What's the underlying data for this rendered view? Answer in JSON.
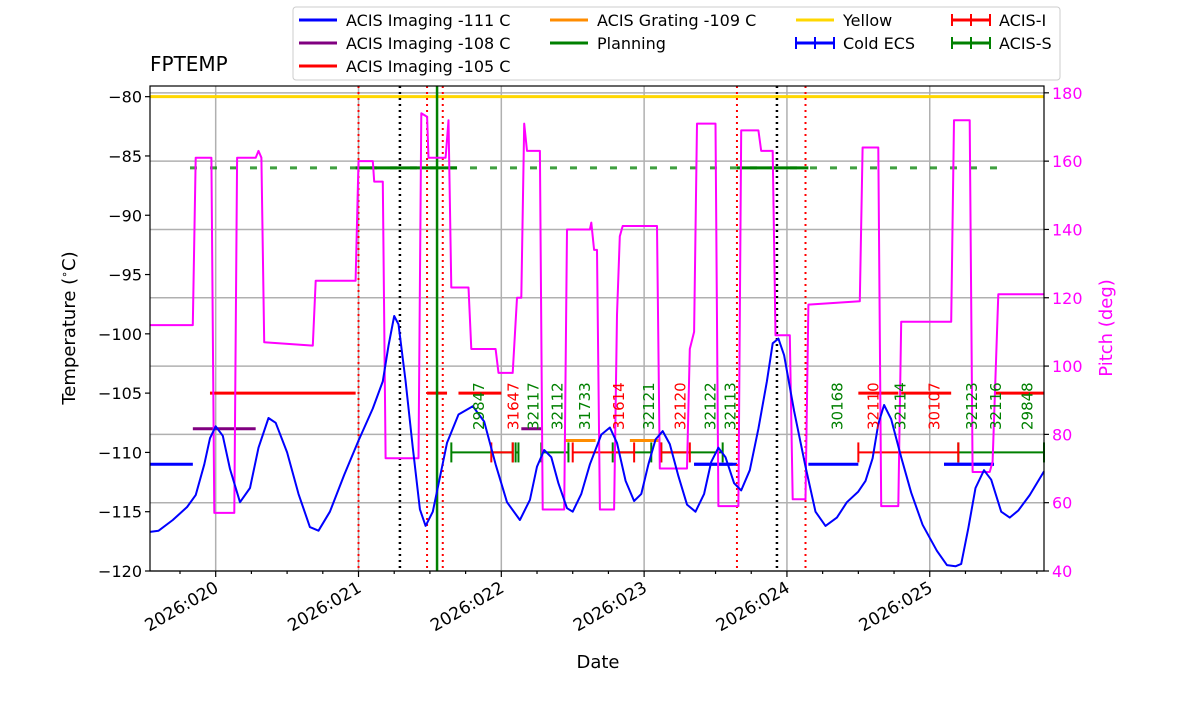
{
  "chart_data": {
    "type": "line",
    "title": "FPTEMP",
    "xlabel": "Date",
    "ylabel": "Temperature ($^\\circ$C)",
    "ylabel_display": "Temperature (",
    "ylabel_unit": "C)",
    "ylabel_degree": "∘",
    "y2label": "Pitch (deg)",
    "xlim": [
      19.54,
      25.8
    ],
    "ylim": [
      -120,
      -79.1
    ],
    "y2lim": [
      40,
      182
    ],
    "xticks": [
      {
        "v": 20,
        "label": "2026:020"
      },
      {
        "v": 21,
        "label": "2026:021"
      },
      {
        "v": 22,
        "label": "2026:022"
      },
      {
        "v": 23,
        "label": "2026:023"
      },
      {
        "v": 24,
        "label": "2026:024"
      },
      {
        "v": 25,
        "label": "2026:025"
      }
    ],
    "yticks": [
      {
        "v": -80,
        "label": "−80"
      },
      {
        "v": -85,
        "label": "−85"
      },
      {
        "v": -90,
        "label": "−90"
      },
      {
        "v": -95,
        "label": "−95"
      },
      {
        "v": -100,
        "label": "−100"
      },
      {
        "v": -105,
        "label": "−105"
      },
      {
        "v": -110,
        "label": "−110"
      },
      {
        "v": -115,
        "label": "−115"
      },
      {
        "v": -120,
        "label": "−120"
      }
    ],
    "y2ticks": [
      {
        "v": 40,
        "label": "40"
      },
      {
        "v": 60,
        "label": "60"
      },
      {
        "v": 80,
        "label": "80"
      },
      {
        "v": 100,
        "label": "100"
      },
      {
        "v": 120,
        "label": "120"
      },
      {
        "v": 140,
        "label": "140"
      },
      {
        "v": 160,
        "label": "160"
      },
      {
        "v": 180,
        "label": "180"
      }
    ],
    "colors": {
      "temp": "#0000ff",
      "pitch": "#ff00ff",
      "limit_111": "#0000ff",
      "limit_108": "#800080",
      "limit_105": "#ff0000",
      "limit_109": "#ff8c00",
      "planning": "#008000",
      "yellow": "#ffd700",
      "acis_i": "#ff0000",
      "acis_s": "#008000",
      "grid": "#b0b0b0"
    },
    "legend": {
      "placement": "top",
      "items": [
        {
          "label": "ACIS Imaging -111 C",
          "color": "#0000ff",
          "kind": "line"
        },
        {
          "label": "ACIS Imaging -108 C",
          "color": "#800080",
          "kind": "line"
        },
        {
          "label": "ACIS Imaging -105 C",
          "color": "#ff0000",
          "kind": "line"
        },
        {
          "label": "ACIS Grating -109 C",
          "color": "#ff8c00",
          "kind": "line"
        },
        {
          "label": "Planning",
          "color": "#008000",
          "kind": "line"
        },
        {
          "label": "Yellow",
          "color": "#ffd700",
          "kind": "line"
        },
        {
          "label": "Cold ECS",
          "color": "#0000ff",
          "kind": "errorbar"
        },
        {
          "label": "ACIS-I",
          "color": "#ff0000",
          "kind": "errorbar"
        },
        {
          "label": "ACIS-S",
          "color": "#008000",
          "kind": "errorbar"
        }
      ]
    },
    "yellow_limit": -80,
    "temperature": [
      [
        19.54,
        -116.7
      ],
      [
        19.6,
        -116.6
      ],
      [
        19.7,
        -115.7
      ],
      [
        19.8,
        -114.6
      ],
      [
        19.86,
        -113.6
      ],
      [
        19.92,
        -111.0
      ],
      [
        19.96,
        -108.8
      ],
      [
        20.0,
        -107.8
      ],
      [
        20.05,
        -108.6
      ],
      [
        20.1,
        -111.4
      ],
      [
        20.17,
        -114.2
      ],
      [
        20.24,
        -113.0
      ],
      [
        20.3,
        -109.6
      ],
      [
        20.37,
        -107.1
      ],
      [
        20.42,
        -107.5
      ],
      [
        20.5,
        -110.0
      ],
      [
        20.58,
        -113.5
      ],
      [
        20.66,
        -116.3
      ],
      [
        20.72,
        -116.6
      ],
      [
        20.8,
        -115.0
      ],
      [
        20.9,
        -111.9
      ],
      [
        21.0,
        -109.0
      ],
      [
        21.1,
        -106.3
      ],
      [
        21.17,
        -104.0
      ],
      [
        21.21,
        -101.0
      ],
      [
        21.25,
        -98.5
      ],
      [
        21.28,
        -99.2
      ],
      [
        21.33,
        -104.0
      ],
      [
        21.38,
        -109.6
      ],
      [
        21.43,
        -114.8
      ],
      [
        21.47,
        -116.2
      ],
      [
        21.52,
        -115.0
      ],
      [
        21.57,
        -112.1
      ],
      [
        21.62,
        -109.2
      ],
      [
        21.7,
        -106.8
      ],
      [
        21.8,
        -106.1
      ],
      [
        21.88,
        -107.4
      ],
      [
        21.96,
        -111.0
      ],
      [
        22.04,
        -114.2
      ],
      [
        22.13,
        -115.7
      ],
      [
        22.2,
        -114.0
      ],
      [
        22.25,
        -111.2
      ],
      [
        22.3,
        -109.8
      ],
      [
        22.35,
        -110.4
      ],
      [
        22.4,
        -112.6
      ],
      [
        22.46,
        -114.7
      ],
      [
        22.5,
        -115.0
      ],
      [
        22.56,
        -113.5
      ],
      [
        22.62,
        -111.0
      ],
      [
        22.7,
        -108.5
      ],
      [
        22.76,
        -107.9
      ],
      [
        22.81,
        -109.2
      ],
      [
        22.87,
        -112.4
      ],
      [
        22.93,
        -114.1
      ],
      [
        22.98,
        -113.5
      ],
      [
        23.03,
        -111.0
      ],
      [
        23.08,
        -108.9
      ],
      [
        23.13,
        -108.2
      ],
      [
        23.18,
        -109.3
      ],
      [
        23.24,
        -112.0
      ],
      [
        23.3,
        -114.4
      ],
      [
        23.36,
        -115.0
      ],
      [
        23.42,
        -113.5
      ],
      [
        23.47,
        -110.8
      ],
      [
        23.52,
        -109.6
      ],
      [
        23.57,
        -110.4
      ],
      [
        23.63,
        -112.6
      ],
      [
        23.68,
        -113.2
      ],
      [
        23.74,
        -111.5
      ],
      [
        23.8,
        -108.0
      ],
      [
        23.86,
        -104.0
      ],
      [
        23.9,
        -100.8
      ],
      [
        23.94,
        -100.4
      ],
      [
        23.98,
        -101.8
      ],
      [
        24.05,
        -106.5
      ],
      [
        24.13,
        -111.2
      ],
      [
        24.2,
        -115.0
      ],
      [
        24.27,
        -116.2
      ],
      [
        24.35,
        -115.5
      ],
      [
        24.42,
        -114.2
      ],
      [
        24.5,
        -113.3
      ],
      [
        24.55,
        -112.4
      ],
      [
        24.6,
        -110.5
      ],
      [
        24.64,
        -107.6
      ],
      [
        24.68,
        -106.0
      ],
      [
        24.73,
        -107.2
      ],
      [
        24.8,
        -110.4
      ],
      [
        24.87,
        -113.4
      ],
      [
        24.95,
        -116.1
      ],
      [
        25.05,
        -118.3
      ],
      [
        25.12,
        -119.5
      ],
      [
        25.18,
        -119.6
      ],
      [
        25.22,
        -119.4
      ],
      [
        25.27,
        -116.4
      ],
      [
        25.32,
        -113.0
      ],
      [
        25.38,
        -111.5
      ],
      [
        25.43,
        -112.3
      ],
      [
        25.5,
        -115.0
      ],
      [
        25.56,
        -115.5
      ],
      [
        25.62,
        -114.9
      ],
      [
        25.7,
        -113.6
      ],
      [
        25.8,
        -111.6
      ]
    ],
    "pitch": [
      [
        19.54,
        112
      ],
      [
        19.84,
        112
      ],
      [
        19.86,
        161
      ],
      [
        19.97,
        161
      ],
      [
        19.99,
        57
      ],
      [
        20.13,
        57
      ],
      [
        20.15,
        161
      ],
      [
        20.28,
        161
      ],
      [
        20.3,
        163
      ],
      [
        20.32,
        161
      ],
      [
        20.34,
        107
      ],
      [
        20.68,
        106
      ],
      [
        20.7,
        125
      ],
      [
        20.98,
        125
      ],
      [
        21.0,
        160
      ],
      [
        21.1,
        160
      ],
      [
        21.11,
        154
      ],
      [
        21.17,
        154
      ],
      [
        21.19,
        73
      ],
      [
        21.42,
        73
      ],
      [
        21.44,
        174
      ],
      [
        21.48,
        173
      ],
      [
        21.49,
        161
      ],
      [
        21.61,
        161
      ],
      [
        21.63,
        172
      ],
      [
        21.65,
        123
      ],
      [
        21.77,
        123
      ],
      [
        21.79,
        105
      ],
      [
        21.96,
        105
      ],
      [
        21.98,
        98
      ],
      [
        22.08,
        98
      ],
      [
        22.11,
        120
      ],
      [
        22.14,
        120
      ],
      [
        22.16,
        171
      ],
      [
        22.18,
        163
      ],
      [
        22.27,
        163
      ],
      [
        22.29,
        58
      ],
      [
        22.44,
        58
      ],
      [
        22.46,
        140
      ],
      [
        22.62,
        140
      ],
      [
        22.63,
        142
      ],
      [
        22.65,
        134
      ],
      [
        22.67,
        134
      ],
      [
        22.69,
        58
      ],
      [
        22.79,
        58
      ],
      [
        22.81,
        115
      ],
      [
        22.83,
        138
      ],
      [
        22.85,
        141
      ],
      [
        23.09,
        141
      ],
      [
        23.11,
        70
      ],
      [
        23.3,
        70
      ],
      [
        23.32,
        105
      ],
      [
        23.35,
        110
      ],
      [
        23.37,
        171
      ],
      [
        23.5,
        171
      ],
      [
        23.52,
        59
      ],
      [
        23.66,
        59
      ],
      [
        23.68,
        169
      ],
      [
        23.8,
        169
      ],
      [
        23.82,
        163
      ],
      [
        23.9,
        163
      ],
      [
        23.92,
        109
      ],
      [
        24.02,
        109
      ],
      [
        24.04,
        61
      ],
      [
        24.13,
        61
      ],
      [
        24.15,
        118
      ],
      [
        24.51,
        119
      ],
      [
        24.53,
        164
      ],
      [
        24.64,
        164
      ],
      [
        24.66,
        59
      ],
      [
        24.78,
        59
      ],
      [
        24.8,
        113
      ],
      [
        25.15,
        113
      ],
      [
        25.17,
        172
      ],
      [
        25.28,
        172
      ],
      [
        25.3,
        69
      ],
      [
        25.42,
        69
      ],
      [
        25.44,
        72
      ],
      [
        25.48,
        121
      ],
      [
        25.8,
        121
      ]
    ],
    "limits_111": [
      [
        19.54,
        19.84
      ],
      [
        23.35,
        23.65
      ],
      [
        24.15,
        24.5
      ],
      [
        25.1,
        25.45
      ]
    ],
    "limits_108": [
      [
        19.84,
        20.28
      ],
      [
        22.14,
        22.28
      ]
    ],
    "limits_105": [
      [
        19.96,
        20.98
      ],
      [
        21.48,
        21.62
      ],
      [
        21.7,
        22.0
      ],
      [
        24.5,
        24.78
      ],
      [
        24.8,
        25.15
      ],
      [
        25.45,
        25.8
      ]
    ],
    "limits_109": [
      [
        22.44,
        22.66
      ],
      [
        22.9,
        23.1
      ]
    ],
    "planning_dashed": {
      "value": -86,
      "from": 19.82,
      "to": 25.5
    },
    "planning_solid": [
      [
        20.98,
        21.69
      ],
      [
        23.65,
        24.15
      ]
    ],
    "acis_s_bars": [
      [
        21.65,
        22.08
      ],
      [
        22.1,
        22.12
      ],
      [
        22.28,
        22.47
      ],
      [
        22.78,
        23.05
      ],
      [
        23.12,
        23.55
      ],
      [
        25.2,
        25.8
      ]
    ],
    "acis_i_bars": [
      [
        21.93,
        22.08
      ],
      [
        22.5,
        22.93
      ],
      [
        23.12,
        23.32
      ],
      [
        24.5,
        25.2
      ]
    ],
    "cold_ecs_bars": [
      [
        23.35,
        23.62
      ],
      [
        25.1,
        25.45
      ]
    ],
    "red_vlines": [
      21.0,
      21.48,
      21.59,
      23.65,
      24.13
    ],
    "black_vlines": [
      21.29,
      23.93
    ],
    "green_vline": 21.55,
    "annotations": [
      {
        "label": "29847",
        "x": 21.88,
        "color": "#008000"
      },
      {
        "label": "31647",
        "x": 22.12,
        "color": "#ff0000"
      },
      {
        "label": "32117",
        "x": 22.26,
        "color": "#008000"
      },
      {
        "label": "32112",
        "x": 22.43,
        "color": "#008000"
      },
      {
        "label": "31733",
        "x": 22.62,
        "color": "#008000"
      },
      {
        "label": "31614",
        "x": 22.86,
        "color": "#ff0000"
      },
      {
        "label": "32121",
        "x": 23.07,
        "color": "#008000"
      },
      {
        "label": "32120",
        "x": 23.29,
        "color": "#ff0000"
      },
      {
        "label": "32122",
        "x": 23.5,
        "color": "#008000"
      },
      {
        "label": "32113",
        "x": 23.64,
        "color": "#008000"
      },
      {
        "label": "30168",
        "x": 24.39,
        "color": "#008000"
      },
      {
        "label": "32110",
        "x": 24.64,
        "color": "#ff0000"
      },
      {
        "label": "32114",
        "x": 24.83,
        "color": "#008000"
      },
      {
        "label": "30107",
        "x": 25.07,
        "color": "#ff0000"
      },
      {
        "label": "32123",
        "x": 25.33,
        "color": "#008000"
      },
      {
        "label": "32116",
        "x": 25.5,
        "color": "#008000"
      },
      {
        "label": "29848",
        "x": 25.72,
        "color": "#008000"
      }
    ]
  }
}
